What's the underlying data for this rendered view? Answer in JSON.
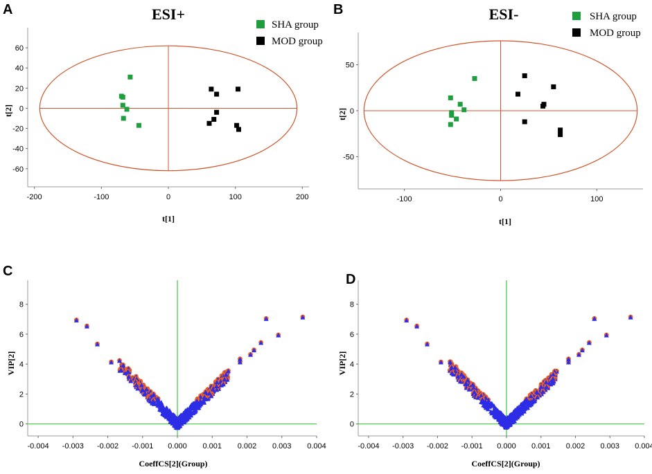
{
  "colors": {
    "sha": "#1e9e3c",
    "mod": "#000000",
    "ellipse": "#d0552a",
    "axis_line": "#d0552a",
    "volcano_line": "#3cc83c",
    "triangle": "#2d2de6",
    "triangle_sig": "#f06020"
  },
  "chart_data": [
    {
      "panel": "A",
      "type": "scatter",
      "title": "ESI+",
      "xlabel": "t[1]",
      "ylabel": "t[2]",
      "xlim": [
        -210,
        210
      ],
      "ylim": [
        -78,
        80
      ],
      "xticks": [
        -200,
        -100,
        0,
        100,
        200
      ],
      "yticks": [
        -60,
        -40,
        -20,
        0,
        20,
        40,
        60
      ],
      "ellipse": {
        "cx": 0,
        "cy": 0,
        "rx": 192,
        "ry": 62
      },
      "legend": [
        "SHA group",
        "MOD group"
      ],
      "series": [
        {
          "name": "SHA group",
          "points": [
            [
              -57,
              31
            ],
            [
              -70,
              12
            ],
            [
              -68,
              11
            ],
            [
              -68,
              3
            ],
            [
              -62,
              -1
            ],
            [
              -67,
              -10
            ],
            [
              -44,
              -17
            ]
          ]
        },
        {
          "name": "MOD group",
          "points": [
            [
              64,
              19
            ],
            [
              72,
              14
            ],
            [
              104,
              19
            ],
            [
              72,
              -4
            ],
            [
              68,
              -11
            ],
            [
              61,
              -15
            ],
            [
              102,
              -17
            ],
            [
              105,
              -21
            ]
          ]
        }
      ]
    },
    {
      "panel": "B",
      "type": "scatter",
      "title": "ESI-",
      "xlabel": "t[1]",
      "ylabel": "t[2]",
      "xlim": [
        -148,
        148
      ],
      "ylim": [
        -85,
        85
      ],
      "xticks": [
        -100,
        0,
        100
      ],
      "yticks": [
        -50,
        0,
        50
      ],
      "ellipse": {
        "cx": 0,
        "cy": 0,
        "rx": 142,
        "ry": 76
      },
      "legend": [
        "SHA group",
        "MOD group"
      ],
      "series": [
        {
          "name": "SHA group",
          "points": [
            [
              -27,
              35
            ],
            [
              -52,
              14
            ],
            [
              -42,
              7
            ],
            [
              -38,
              1
            ],
            [
              -51,
              -2
            ],
            [
              -51,
              -5
            ],
            [
              -46,
              -9
            ],
            [
              -52,
              -15
            ]
          ]
        },
        {
          "name": "MOD group",
          "points": [
            [
              25,
              38
            ],
            [
              18,
              18
            ],
            [
              55,
              26
            ],
            [
              45,
              7
            ],
            [
              44,
              5
            ],
            [
              25,
              -12
            ],
            [
              62,
              -21
            ],
            [
              62,
              -26
            ]
          ]
        }
      ]
    },
    {
      "panel": "C",
      "type": "scatter",
      "title": "",
      "xlabel": "CoeffCS[2](Group)",
      "ylabel": "VIP[2]",
      "xlim": [
        -0.0043,
        0.004
      ],
      "ylim": [
        -0.8,
        9.6
      ],
      "xticks": [
        -0.004,
        -0.003,
        -0.002,
        -0.001,
        0.0,
        0.001,
        0.002,
        0.003,
        0.004
      ],
      "xtick_labels": [
        "-0.004",
        "-0.003",
        "-0.002",
        "-0.001",
        "0.000",
        "0.001",
        "0.002",
        "0.003",
        "0.004"
      ],
      "yticks": [
        0,
        2,
        4,
        6,
        8
      ],
      "vip_threshold": 1,
      "outliers": [
        [
          -0.0029,
          6.9
        ],
        [
          -0.0026,
          6.5
        ],
        [
          -0.0023,
          5.3
        ],
        [
          -0.0019,
          4.1
        ],
        [
          0.00255,
          7.0
        ],
        [
          0.0036,
          7.1
        ],
        [
          0.0029,
          5.9
        ],
        [
          0.0024,
          5.4
        ],
        [
          0.0022,
          4.9
        ],
        [
          0.0021,
          4.6
        ],
        [
          0.0018,
          4.1
        ],
        [
          0.0018,
          4.3
        ]
      ]
    },
    {
      "panel": "D",
      "type": "scatter",
      "title": "",
      "xlabel": "CoeffCS[2](Group)",
      "ylabel": "VIP[2]",
      "xlim": [
        -0.0043,
        0.004
      ],
      "ylim": [
        -0.8,
        9.6
      ],
      "xticks": [
        -0.004,
        -0.003,
        -0.002,
        -0.001,
        0.0,
        0.001,
        0.002,
        0.003,
        0.004
      ],
      "xtick_labels": [
        "-0.004",
        "-0.003",
        "-0.002",
        "-0.001",
        "0.000",
        "0.001",
        "0.002",
        "0.003",
        "0.004"
      ],
      "yticks": [
        0,
        2,
        4,
        6,
        8
      ],
      "vip_threshold": 1,
      "outliers": [
        [
          -0.0029,
          6.9
        ],
        [
          -0.0026,
          6.5
        ],
        [
          -0.0023,
          5.3
        ],
        [
          -0.0019,
          4.1
        ],
        [
          0.00255,
          7.0
        ],
        [
          0.0036,
          7.1
        ],
        [
          0.0029,
          5.9
        ],
        [
          0.0024,
          5.4
        ],
        [
          0.0022,
          4.9
        ],
        [
          0.0021,
          4.6
        ],
        [
          0.0018,
          4.1
        ],
        [
          0.0018,
          4.3
        ]
      ]
    }
  ]
}
